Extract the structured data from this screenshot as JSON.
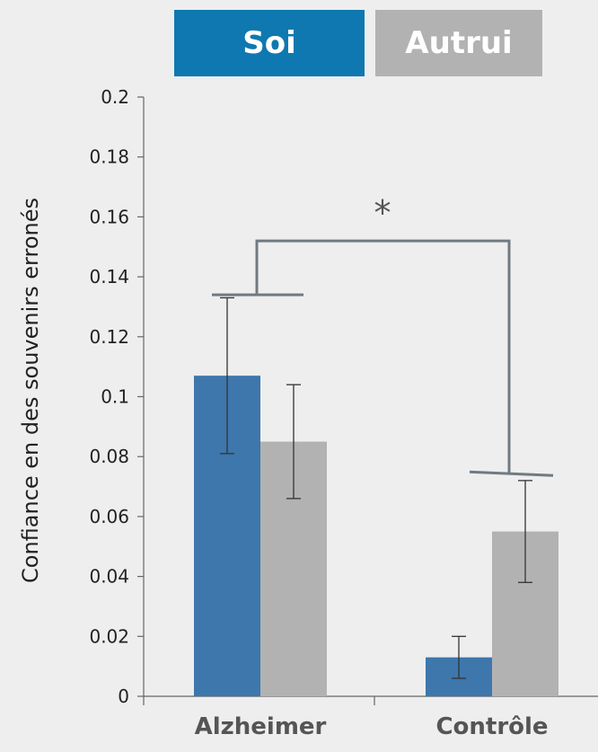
{
  "colors": {
    "background": "#eeeeee",
    "soi": "#3d77ac",
    "autrui": "#b2b2b2",
    "legend_soi": "#0f78b0",
    "legend_autrui": "#b2b2b2",
    "axis": "#666666",
    "bracket": "#707a80"
  },
  "legend": {
    "soi": "Soi",
    "autrui": "Autrui"
  },
  "chart_data": {
    "type": "bar",
    "categories": [
      "Alzheimer",
      "Contrôle"
    ],
    "series": [
      {
        "name": "Soi",
        "values": [
          0.107,
          0.013
        ],
        "error_low": [
          0.081,
          0.006
        ],
        "error_high": [
          0.133,
          0.02
        ]
      },
      {
        "name": "Autrui",
        "values": [
          0.085,
          0.055
        ],
        "error_low": [
          0.066,
          0.038
        ],
        "error_high": [
          0.104,
          0.072
        ]
      }
    ],
    "ylabel": "Confiance en des souvenirs erronés",
    "xlabel": "",
    "ylim": [
      0,
      0.2
    ],
    "yticks": [
      "0",
      "0.02",
      "0.04",
      "0.06",
      "0.08",
      "0.1",
      "0.12",
      "0.14",
      "0.16",
      "0.18",
      "0.2"
    ],
    "grid": false,
    "legend_placement": "top",
    "annotation": {
      "text": "*",
      "left_cap_value": 0.134,
      "right_cap_value": 0.074,
      "bracket_top_value": 0.152
    }
  }
}
